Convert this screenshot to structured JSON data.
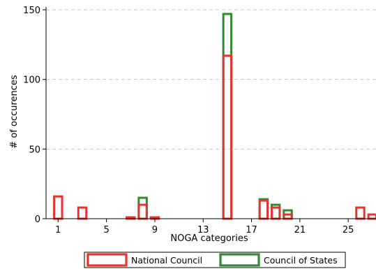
{
  "chart_data": {
    "type": "bar",
    "xlabel": "NOGA categories",
    "ylabel": "# of occurences",
    "xlim": [
      0,
      27.3
    ],
    "ylim": [
      0,
      152
    ],
    "x_ticks": [
      1,
      5,
      9,
      13,
      17,
      21,
      25
    ],
    "y_ticks": [
      0,
      50,
      100,
      150
    ],
    "grid": "horizontal dashed",
    "legend_position": "bottom",
    "series": [
      {
        "name": "National Council",
        "color": "#e8332f",
        "x": [
          1,
          3,
          7,
          8,
          9,
          15,
          18,
          19,
          20,
          26,
          27
        ],
        "values": [
          16,
          8,
          1,
          10,
          1,
          117,
          13,
          8,
          3,
          8,
          3
        ]
      },
      {
        "name": "Council of States",
        "color": "#2e8b2e",
        "x": [
          8,
          15,
          18,
          19,
          20
        ],
        "values": [
          15,
          147,
          14,
          10,
          6
        ]
      }
    ]
  }
}
